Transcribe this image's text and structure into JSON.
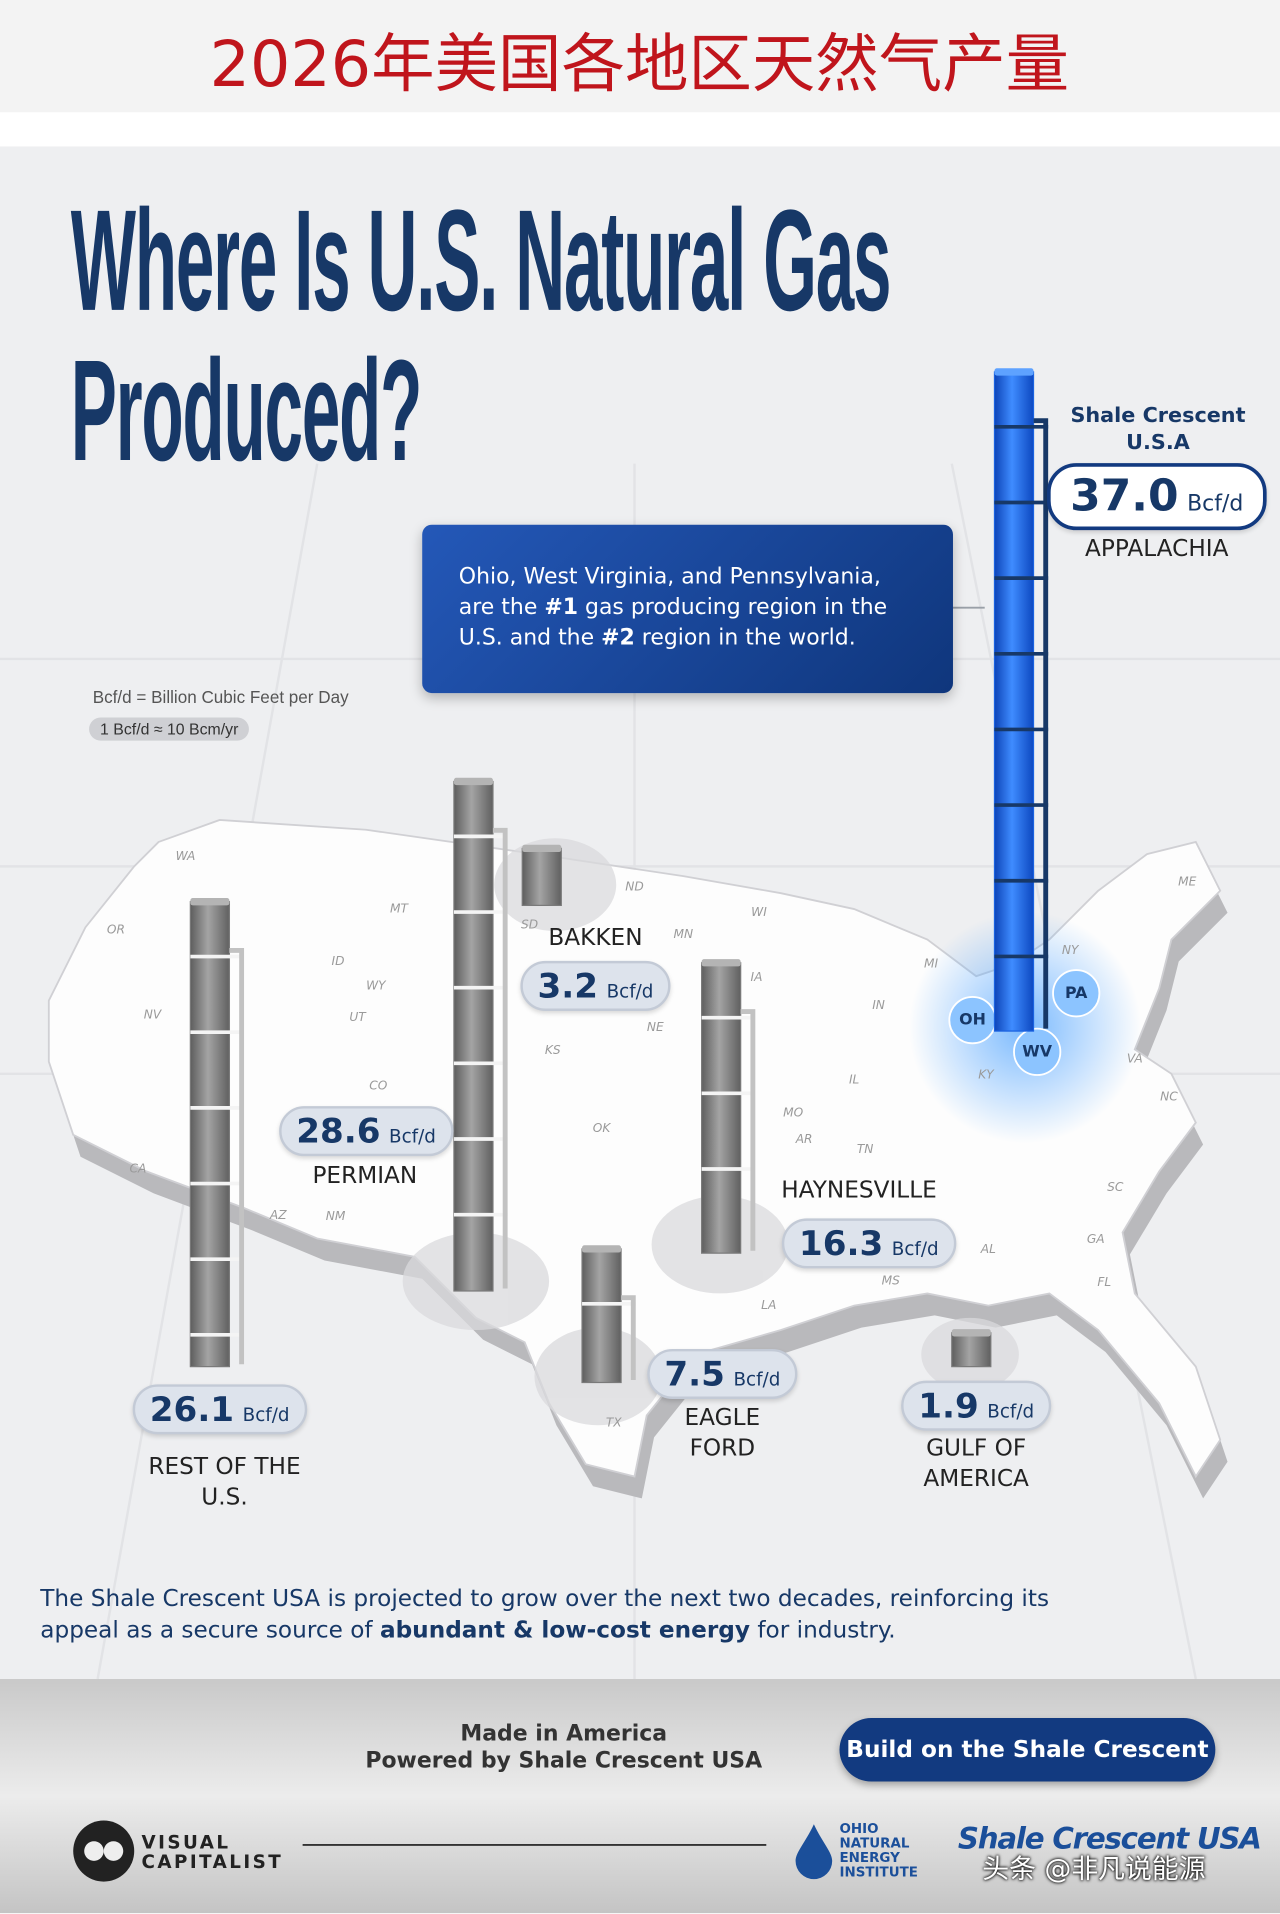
{
  "banner": "2026年美国各地区天然气产量",
  "chart_data": {
    "type": "bar",
    "title": "Where Is U.S. Natural Gas Produced?",
    "unit": "Bcf/d",
    "categories": [
      "APPALACHIA",
      "BAKKEN",
      "PERMIAN",
      "HAYNESVILLE",
      "EAGLE FORD",
      "GULF OF AMERICA",
      "REST OF THE U.S."
    ],
    "values": [
      37,
      3.2,
      28.6,
      16.3,
      7.5,
      1.9,
      26.1
    ],
    "value_labels": [
      "37.0",
      "3.2",
      "28.6",
      "16.3",
      "7.5",
      "1.9",
      "26.1"
    ],
    "colors": [
      "#1a62e0",
      "#7a7a7a",
      "#7a7a7a",
      "#7a7a7a",
      "#7a7a7a",
      "#7a7a7a",
      "#7a7a7a"
    ],
    "highlight_label": "Shale Crescent U.S.A",
    "callout": [
      [
        "Ohio, West Virginia, and Pennsylvania,"
      ],
      [
        "are the ",
        "#1",
        " gas producing region in the"
      ],
      [
        "U.S. and the ",
        "#2",
        " region in the world."
      ]
    ],
    "unit_note": "Bcf/d = Billion Cubic Feet per Day",
    "conversion_note": "1 Bcf/d ≈ 10 Bcm/yr",
    "map_labels": [
      "WA",
      "OR",
      "MT",
      "ID",
      "WY",
      "NV",
      "UT",
      "CA",
      "AZ",
      "NM",
      "CO",
      "SD",
      "ND",
      "MN",
      "WI",
      "NE",
      "KS",
      "OK",
      "IA",
      "MO",
      "AR",
      "TX",
      "LA",
      "MS",
      "IL",
      "IN",
      "MI",
      "KY",
      "TN",
      "AL",
      "GA",
      "SC",
      "NC",
      "VA",
      "FL",
      "NY",
      "ME"
    ],
    "highlight_states": [
      "OH",
      "WV",
      "PA"
    ]
  },
  "closing": [
    "The Shale Crescent USA is projected to grow over the next two decades, reinforcing its appeal as a secure source of ",
    "abundant & low-cost energy",
    " for industry."
  ],
  "footer": {
    "tagline": "Made in America",
    "powered_by": "Powered by Shale Crescent USA",
    "button": "Build on the Shale Crescent",
    "logos": [
      "VISUAL CAPITALIST",
      "OHIO NATURAL ENERGY INSTITUTE",
      "Shale Crescent USA"
    ],
    "watermark": "头条 @非凡说能源"
  }
}
